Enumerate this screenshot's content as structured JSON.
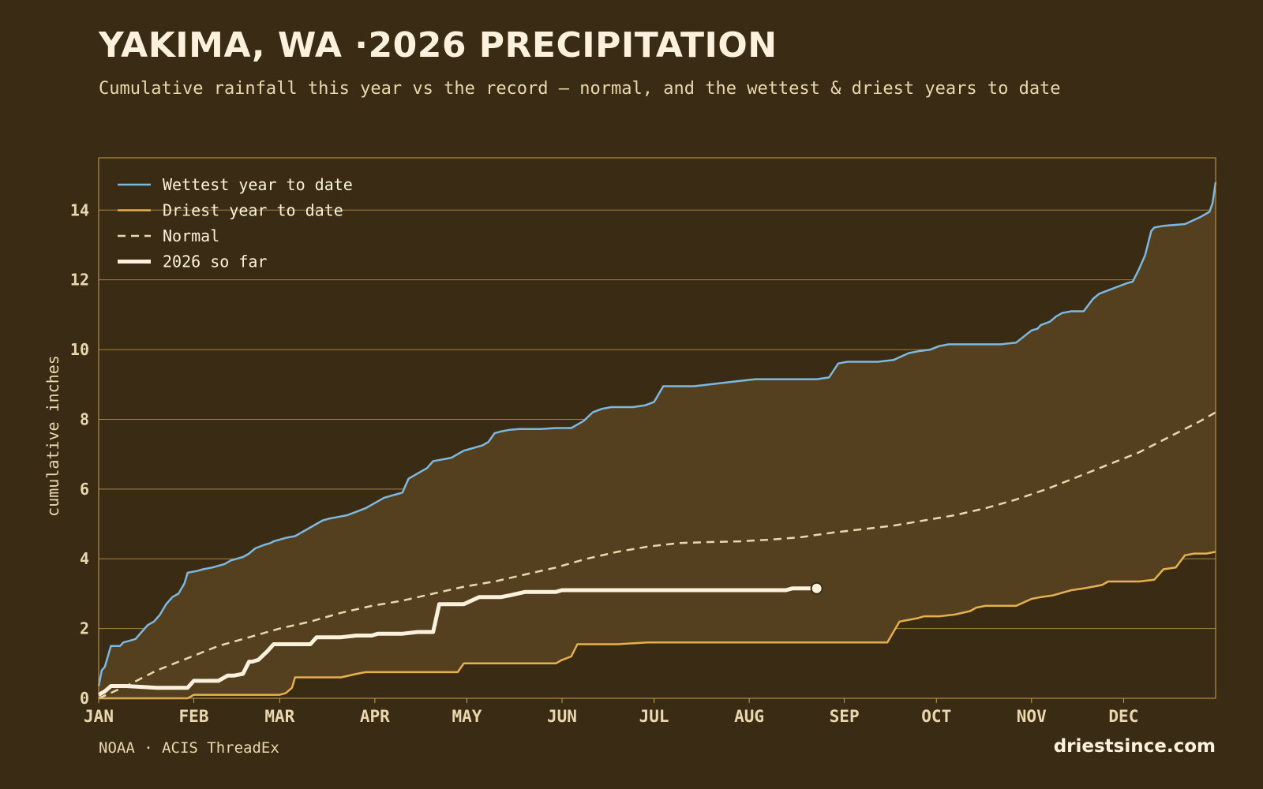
{
  "header": {
    "title": "YAKIMA, WA ·2026 PRECIPITATION",
    "subtitle": "Cumulative rainfall this year vs the record — normal, and the wettest & driest years to date"
  },
  "footer": {
    "source": "NOAA · ACIS ThreadEx",
    "brand": "driestsince.com"
  },
  "colors": {
    "background": "#3a2c14",
    "band_fill": "#54401f",
    "frame": "#c9a04a",
    "wettest": "#7db8e0",
    "driest": "#e7b04f",
    "normal": "#e9d7ae",
    "current": "#fbf1dc",
    "text": "#e9d7ae"
  },
  "chart_data": {
    "type": "line",
    "title": "YAKIMA, WA ·2026 PRECIPITATION",
    "ylabel": "cumulative inches",
    "xlabel": "",
    "xlim": [
      1,
      365
    ],
    "ylim": [
      0,
      15.5
    ],
    "yticks": [
      0,
      2,
      4,
      6,
      8,
      10,
      12,
      14
    ],
    "xticks": [
      {
        "label": "JAN",
        "day": 1
      },
      {
        "label": "FEB",
        "day": 32
      },
      {
        "label": "MAR",
        "day": 60
      },
      {
        "label": "APR",
        "day": 91
      },
      {
        "label": "MAY",
        "day": 121
      },
      {
        "label": "JUN",
        "day": 152
      },
      {
        "label": "JUL",
        "day": 182
      },
      {
        "label": "AUG",
        "day": 213
      },
      {
        "label": "SEP",
        "day": 244
      },
      {
        "label": "OCT",
        "day": 274
      },
      {
        "label": "NOV",
        "day": 305
      },
      {
        "label": "DEC",
        "day": 335
      }
    ],
    "grid": "horizontal",
    "legend_position": "top-left",
    "series": [
      {
        "name": "Wettest year to date",
        "style": "solid",
        "x": [
          1,
          2,
          3,
          5,
          6,
          8,
          9,
          13,
          15,
          17,
          19,
          21,
          23,
          25,
          27,
          29,
          30,
          33,
          35,
          38,
          40,
          42,
          44,
          46,
          48,
          50,
          52,
          55,
          57,
          58,
          60,
          62,
          65,
          68,
          70,
          72,
          74,
          76,
          79,
          82,
          85,
          88,
          90,
          92,
          94,
          96,
          98,
          100,
          102,
          104,
          106,
          108,
          110,
          113,
          116,
          118,
          120,
          122,
          124,
          126,
          128,
          130,
          132,
          135,
          138,
          140,
          142,
          145,
          150,
          155,
          157,
          159,
          162,
          165,
          168,
          172,
          175,
          179,
          182,
          185,
          190,
          195,
          200,
          205,
          210,
          215,
          220,
          225,
          230,
          235,
          239,
          242,
          245,
          247,
          250,
          255,
          260,
          265,
          268,
          272,
          275,
          278,
          280,
          285,
          290,
          295,
          300,
          305,
          307,
          308,
          311,
          313,
          315,
          318,
          322,
          325,
          327,
          330,
          333,
          336,
          338,
          340,
          342,
          344,
          345,
          348,
          355,
          360,
          363,
          364,
          365
        ],
        "y": [
          0.35,
          0.8,
          0.9,
          1.5,
          1.5,
          1.5,
          1.6,
          1.7,
          1.9,
          2.1,
          2.2,
          2.4,
          2.7,
          2.9,
          3.0,
          3.3,
          3.6,
          3.65,
          3.7,
          3.75,
          3.8,
          3.85,
          3.95,
          4.0,
          4.05,
          4.15,
          4.3,
          4.4,
          4.45,
          4.5,
          4.55,
          4.6,
          4.65,
          4.8,
          4.9,
          5.0,
          5.1,
          5.15,
          5.2,
          5.25,
          5.35,
          5.45,
          5.55,
          5.65,
          5.75,
          5.8,
          5.85,
          5.9,
          6.3,
          6.4,
          6.5,
          6.6,
          6.8,
          6.85,
          6.9,
          7.0,
          7.1,
          7.15,
          7.2,
          7.25,
          7.35,
          7.6,
          7.65,
          7.7,
          7.72,
          7.72,
          7.72,
          7.72,
          7.75,
          7.75,
          7.85,
          7.95,
          8.2,
          8.3,
          8.35,
          8.35,
          8.35,
          8.4,
          8.5,
          8.95,
          8.95,
          8.95,
          9.0,
          9.05,
          9.1,
          9.15,
          9.15,
          9.15,
          9.15,
          9.15,
          9.2,
          9.6,
          9.65,
          9.65,
          9.65,
          9.65,
          9.7,
          9.9,
          9.95,
          10.0,
          10.1,
          10.15,
          10.15,
          10.15,
          10.15,
          10.15,
          10.2,
          10.55,
          10.6,
          10.7,
          10.8,
          10.95,
          11.05,
          11.1,
          11.1,
          11.45,
          11.6,
          11.7,
          11.8,
          11.9,
          11.95,
          12.3,
          12.7,
          13.4,
          13.5,
          13.55,
          13.6,
          13.8,
          13.95,
          14.2,
          14.8
        ]
      },
      {
        "name": "Driest year to date",
        "style": "solid",
        "x": [
          1,
          20,
          30,
          32,
          60,
          62,
          64,
          65,
          70,
          80,
          85,
          88,
          90,
          100,
          110,
          115,
          118,
          120,
          123,
          125,
          130,
          140,
          150,
          152,
          155,
          157,
          160,
          170,
          180,
          200,
          220,
          240,
          258,
          260,
          262,
          265,
          268,
          270,
          275,
          280,
          285,
          287,
          290,
          295,
          300,
          305,
          308,
          312,
          318,
          322,
          325,
          328,
          330,
          335,
          340,
          345,
          348,
          352,
          355,
          358,
          362,
          365
        ],
        "y": [
          0,
          0,
          0,
          0.1,
          0.1,
          0.15,
          0.3,
          0.6,
          0.6,
          0.6,
          0.7,
          0.75,
          0.75,
          0.75,
          0.75,
          0.75,
          0.75,
          1.0,
          1.0,
          1.0,
          1.0,
          1.0,
          1.0,
          1.1,
          1.2,
          1.55,
          1.55,
          1.55,
          1.6,
          1.6,
          1.6,
          1.6,
          1.6,
          1.9,
          2.2,
          2.25,
          2.3,
          2.35,
          2.35,
          2.4,
          2.5,
          2.6,
          2.65,
          2.65,
          2.65,
          2.85,
          2.9,
          2.95,
          3.1,
          3.15,
          3.2,
          3.25,
          3.35,
          3.35,
          3.35,
          3.4,
          3.7,
          3.75,
          4.1,
          4.15,
          4.15,
          4.2
        ]
      },
      {
        "name": "Normal",
        "style": "dashed",
        "x": [
          1,
          10,
          20,
          30,
          40,
          50,
          60,
          70,
          80,
          90,
          100,
          110,
          120,
          130,
          140,
          150,
          160,
          170,
          180,
          190,
          200,
          210,
          220,
          230,
          240,
          250,
          260,
          270,
          280,
          290,
          300,
          310,
          320,
          330,
          340,
          350,
          360,
          365
        ],
        "y": [
          0,
          0.35,
          0.8,
          1.15,
          1.5,
          1.75,
          2.0,
          2.2,
          2.45,
          2.65,
          2.8,
          3.0,
          3.2,
          3.35,
          3.55,
          3.75,
          4.0,
          4.2,
          4.35,
          4.45,
          4.48,
          4.5,
          4.55,
          4.62,
          4.75,
          4.85,
          4.95,
          5.1,
          5.25,
          5.45,
          5.7,
          6.0,
          6.35,
          6.7,
          7.05,
          7.5,
          7.95,
          8.2
        ]
      },
      {
        "name": "2026 so far",
        "style": "bold",
        "x": [
          1,
          3,
          5,
          10,
          20,
          30,
          32,
          35,
          40,
          43,
          45,
          48,
          50,
          51,
          53,
          56,
          58,
          60,
          62,
          66,
          70,
          72,
          74,
          76,
          80,
          85,
          90,
          92,
          95,
          100,
          105,
          110,
          112,
          113,
          115,
          120,
          125,
          130,
          132,
          135,
          140,
          145,
          150,
          152,
          155,
          157,
          160,
          170,
          180,
          190,
          200,
          210,
          220,
          225,
          227,
          230,
          233,
          235
        ],
        "y": [
          0.1,
          0.2,
          0.35,
          0.35,
          0.3,
          0.3,
          0.5,
          0.5,
          0.5,
          0.65,
          0.65,
          0.7,
          1.05,
          1.05,
          1.1,
          1.35,
          1.55,
          1.55,
          1.55,
          1.55,
          1.55,
          1.75,
          1.75,
          1.75,
          1.75,
          1.8,
          1.8,
          1.85,
          1.85,
          1.85,
          1.9,
          1.9,
          2.7,
          2.7,
          2.7,
          2.7,
          2.9,
          2.9,
          2.9,
          2.95,
          3.05,
          3.05,
          3.05,
          3.1,
          3.1,
          3.1,
          3.1,
          3.1,
          3.1,
          3.1,
          3.1,
          3.1,
          3.1,
          3.1,
          3.15,
          3.15,
          3.15,
          3.15
        ]
      }
    ]
  }
}
